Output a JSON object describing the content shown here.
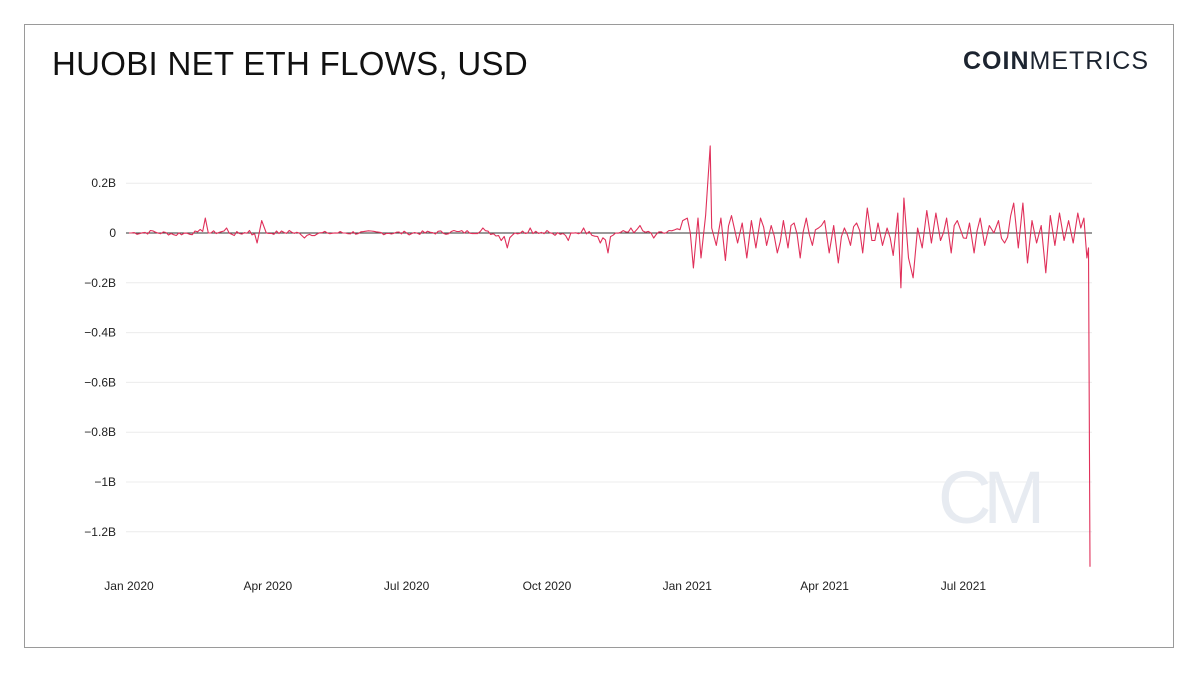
{
  "header": {
    "title": "HUOBI NET ETH FLOWS, USD",
    "brand_bold": "COIN",
    "brand_light": "METRICS",
    "watermark": "CM"
  },
  "colors": {
    "series": "#e0305a",
    "grid": "#ececec",
    "zero": "#333333",
    "watermark": "#e7ebf1"
  },
  "chart_data": {
    "type": "line",
    "title": "HUOBI NET ETH FLOWS, USD",
    "xlabel": "",
    "ylabel": "",
    "grid": true,
    "legend": "none",
    "ylim": [
      -1.35,
      0.35
    ],
    "yticks": [
      0.2,
      0,
      -0.2,
      -0.4,
      -0.6,
      -0.8,
      -1,
      -1.2
    ],
    "ytick_labels": [
      "0.2B",
      "0",
      "−0.2B",
      "−0.4B",
      "−0.6B",
      "−0.8B",
      "−1B",
      "−1.2B"
    ],
    "xlim": [
      "2020-01-01",
      "2021-09-30"
    ],
    "xticks": [
      "2020-01-01",
      "2020-04-01",
      "2020-07-01",
      "2020-10-01",
      "2021-01-01",
      "2021-04-01",
      "2021-07-01"
    ],
    "xtick_labels": [
      "Jan 2020",
      "Apr 2020",
      "Jul 2020",
      "Oct 2020",
      "Jan 2021",
      "Apr 2021",
      "Jul 2021"
    ],
    "series": [
      {
        "unit": "billion USD",
        "points": [
          [
            "2020-01-01",
            0.0
          ],
          [
            "2020-01-15",
            0.01
          ],
          [
            "2020-02-01",
            -0.01
          ],
          [
            "2020-02-15",
            0.005
          ],
          [
            "2020-02-20",
            0.06
          ],
          [
            "2020-02-22",
            0.0
          ],
          [
            "2020-03-05",
            0.02
          ],
          [
            "2020-03-10",
            -0.01
          ],
          [
            "2020-03-20",
            0.01
          ],
          [
            "2020-03-25",
            -0.04
          ],
          [
            "2020-03-28",
            0.05
          ],
          [
            "2020-03-31",
            0.0
          ],
          [
            "2020-04-15",
            0.01
          ],
          [
            "2020-04-25",
            -0.02
          ],
          [
            "2020-05-10",
            0.0
          ],
          [
            "2020-06-01",
            0.005
          ],
          [
            "2020-07-01",
            0.0
          ],
          [
            "2020-08-01",
            0.01
          ],
          [
            "2020-08-20",
            0.02
          ],
          [
            "2020-09-01",
            -0.03
          ],
          [
            "2020-09-05",
            -0.06
          ],
          [
            "2020-09-10",
            0.0
          ],
          [
            "2020-09-20",
            0.02
          ],
          [
            "2020-10-01",
            0.01
          ],
          [
            "2020-10-15",
            -0.03
          ],
          [
            "2020-10-25",
            0.02
          ],
          [
            "2020-11-05",
            -0.04
          ],
          [
            "2020-11-10",
            -0.08
          ],
          [
            "2020-11-15",
            0.0
          ],
          [
            "2020-11-25",
            0.02
          ],
          [
            "2020-12-01",
            0.03
          ],
          [
            "2020-12-10",
            -0.02
          ],
          [
            "2020-12-20",
            0.01
          ],
          [
            "2020-12-29",
            0.05
          ],
          [
            "2021-01-01",
            0.06
          ],
          [
            "2021-01-03",
            0.0
          ],
          [
            "2021-01-05",
            -0.14
          ],
          [
            "2021-01-08",
            0.06
          ],
          [
            "2021-01-10",
            -0.1
          ],
          [
            "2021-01-13",
            0.07
          ],
          [
            "2021-01-16",
            0.35
          ],
          [
            "2021-01-17",
            0.02
          ],
          [
            "2021-01-20",
            -0.05
          ],
          [
            "2021-01-23",
            0.06
          ],
          [
            "2021-01-26",
            -0.11
          ],
          [
            "2021-01-30",
            0.07
          ],
          [
            "2021-02-03",
            -0.04
          ],
          [
            "2021-02-06",
            0.04
          ],
          [
            "2021-02-09",
            -0.1
          ],
          [
            "2021-02-12",
            0.05
          ],
          [
            "2021-02-15",
            -0.06
          ],
          [
            "2021-02-18",
            0.06
          ],
          [
            "2021-02-22",
            -0.05
          ],
          [
            "2021-02-25",
            0.03
          ],
          [
            "2021-03-01",
            -0.08
          ],
          [
            "2021-03-05",
            0.05
          ],
          [
            "2021-03-08",
            -0.06
          ],
          [
            "2021-03-12",
            0.04
          ],
          [
            "2021-03-16",
            -0.1
          ],
          [
            "2021-03-20",
            0.06
          ],
          [
            "2021-03-24",
            -0.05
          ],
          [
            "2021-03-28",
            0.02
          ],
          [
            "2021-04-01",
            0.05
          ],
          [
            "2021-04-04",
            -0.08
          ],
          [
            "2021-04-07",
            0.03
          ],
          [
            "2021-04-10",
            -0.12
          ],
          [
            "2021-04-14",
            0.02
          ],
          [
            "2021-04-18",
            -0.05
          ],
          [
            "2021-04-22",
            0.04
          ],
          [
            "2021-04-26",
            -0.08
          ],
          [
            "2021-04-29",
            0.1
          ],
          [
            "2021-05-02",
            -0.03
          ],
          [
            "2021-05-06",
            0.04
          ],
          [
            "2021-05-09",
            -0.05
          ],
          [
            "2021-05-12",
            0.02
          ],
          [
            "2021-05-16",
            -0.09
          ],
          [
            "2021-05-19",
            0.08
          ],
          [
            "2021-05-21",
            -0.22
          ],
          [
            "2021-05-23",
            0.14
          ],
          [
            "2021-05-26",
            -0.1
          ],
          [
            "2021-05-29",
            -0.18
          ],
          [
            "2021-06-01",
            0.02
          ],
          [
            "2021-06-04",
            -0.06
          ],
          [
            "2021-06-07",
            0.09
          ],
          [
            "2021-06-10",
            -0.04
          ],
          [
            "2021-06-13",
            0.08
          ],
          [
            "2021-06-16",
            -0.03
          ],
          [
            "2021-06-20",
            0.06
          ],
          [
            "2021-06-23",
            -0.08
          ],
          [
            "2021-06-27",
            0.05
          ],
          [
            "2021-07-01",
            -0.02
          ],
          [
            "2021-07-05",
            0.04
          ],
          [
            "2021-07-08",
            -0.08
          ],
          [
            "2021-07-12",
            0.06
          ],
          [
            "2021-07-15",
            -0.05
          ],
          [
            "2021-07-18",
            0.03
          ],
          [
            "2021-07-21",
            0.0
          ],
          [
            "2021-07-24",
            0.05
          ],
          [
            "2021-07-28",
            -0.04
          ],
          [
            "2021-08-01",
            0.07
          ],
          [
            "2021-08-03",
            0.12
          ],
          [
            "2021-08-06",
            -0.06
          ],
          [
            "2021-08-09",
            0.12
          ],
          [
            "2021-08-12",
            -0.12
          ],
          [
            "2021-08-15",
            0.05
          ],
          [
            "2021-08-18",
            -0.04
          ],
          [
            "2021-08-21",
            0.03
          ],
          [
            "2021-08-24",
            -0.16
          ],
          [
            "2021-08-27",
            0.07
          ],
          [
            "2021-08-30",
            -0.05
          ],
          [
            "2021-09-02",
            0.08
          ],
          [
            "2021-09-05",
            -0.03
          ],
          [
            "2021-09-08",
            0.05
          ],
          [
            "2021-09-11",
            -0.04
          ],
          [
            "2021-09-14",
            0.08
          ],
          [
            "2021-09-16",
            0.02
          ],
          [
            "2021-09-18",
            0.06
          ],
          [
            "2021-09-20",
            -0.1
          ],
          [
            "2021-09-21",
            -0.06
          ],
          [
            "2021-09-22",
            -1.34
          ]
        ]
      }
    ]
  }
}
